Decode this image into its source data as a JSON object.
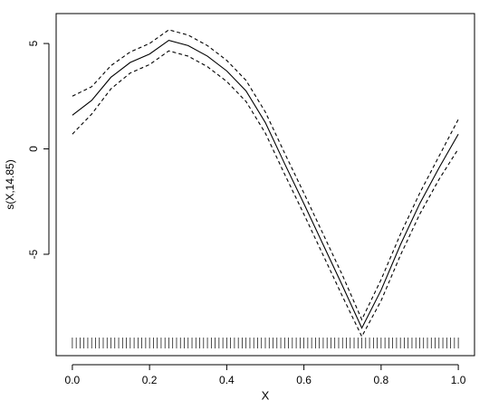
{
  "chart_data": {
    "type": "line",
    "x_label": "X",
    "y_label": "s(X,14.85)",
    "x": [
      0.0,
      0.05,
      0.1,
      0.15,
      0.2,
      0.25,
      0.3,
      0.35,
      0.4,
      0.45,
      0.5,
      0.55,
      0.6,
      0.65,
      0.7,
      0.75,
      0.8,
      0.85,
      0.9,
      0.95,
      1.0
    ],
    "series": [
      {
        "color": "#000000",
        "line_style": "solid",
        "values": [
          1.6,
          2.3,
          3.4,
          4.1,
          4.5,
          5.15,
          4.9,
          4.4,
          3.7,
          2.75,
          1.25,
          -0.7,
          -2.6,
          -4.55,
          -6.5,
          -8.5,
          -6.7,
          -4.55,
          -2.6,
          -0.9,
          0.7
        ]
      },
      {
        "color": "#000000",
        "line_style": "dashed",
        "values": [
          2.5,
          2.95,
          3.95,
          4.6,
          5.0,
          5.65,
          5.4,
          4.9,
          4.2,
          3.25,
          1.75,
          -0.2,
          -2.1,
          -4.05,
          -6.0,
          -8.1,
          -6.2,
          -4.05,
          -2.1,
          -0.35,
          1.4
        ]
      },
      {
        "color": "#000000",
        "line_style": "dashed",
        "values": [
          0.7,
          1.65,
          2.85,
          3.6,
          4.0,
          4.65,
          4.4,
          3.9,
          3.2,
          2.25,
          0.75,
          -1.2,
          -3.1,
          -5.05,
          -7.0,
          -8.9,
          -7.2,
          -5.05,
          -3.1,
          -1.45,
          0.0
        ]
      }
    ],
    "rug": [
      0.0,
      0.01,
      0.02,
      0.03,
      0.04,
      0.05,
      0.06,
      0.07,
      0.08,
      0.09,
      0.1,
      0.11,
      0.12,
      0.13,
      0.14,
      0.15,
      0.16,
      0.17,
      0.18,
      0.19,
      0.2,
      0.21,
      0.22,
      0.23,
      0.24,
      0.25,
      0.26,
      0.27,
      0.28,
      0.29,
      0.3,
      0.31,
      0.32,
      0.33,
      0.34,
      0.35,
      0.36,
      0.37,
      0.38,
      0.39,
      0.4,
      0.41,
      0.42,
      0.43,
      0.44,
      0.45,
      0.46,
      0.47,
      0.48,
      0.49,
      0.5,
      0.51,
      0.52,
      0.53,
      0.54,
      0.55,
      0.56,
      0.57,
      0.58,
      0.59,
      0.6,
      0.61,
      0.62,
      0.63,
      0.64,
      0.65,
      0.66,
      0.67,
      0.68,
      0.69,
      0.7,
      0.71,
      0.72,
      0.73,
      0.74,
      0.75,
      0.76,
      0.77,
      0.78,
      0.79,
      0.8,
      0.81,
      0.82,
      0.83,
      0.84,
      0.85,
      0.86,
      0.87,
      0.88,
      0.89,
      0.9,
      0.91,
      0.92,
      0.93,
      0.94,
      0.95,
      0.96,
      0.97,
      0.98,
      0.99,
      1.0
    ],
    "xlim": [
      -0.042,
      1.042
    ],
    "xticks": [
      {
        "value": 0,
        "label": "0.0"
      },
      {
        "value": 0.2,
        "label": "0.2"
      },
      {
        "value": 0.4,
        "label": "0.4"
      },
      {
        "value": 0.6,
        "label": "0.6"
      },
      {
        "value": 0.8,
        "label": "0.8"
      },
      {
        "value": 1,
        "label": "1.0"
      }
    ],
    "ylim": [
      -9.81,
      6.42
    ],
    "yticks": [
      -5,
      0,
      5
    ]
  }
}
